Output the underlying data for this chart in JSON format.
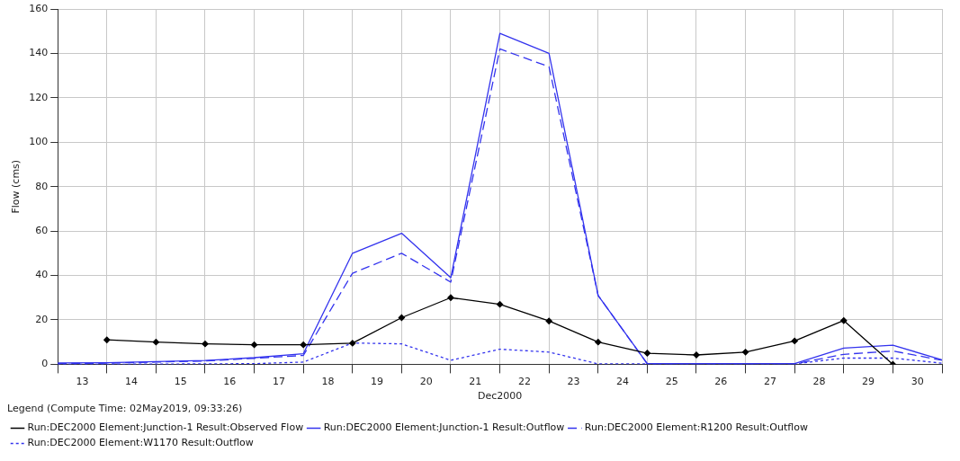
{
  "chart_data": {
    "type": "line",
    "xlabel": "Dec2000",
    "ylabel": "Flow (cms)",
    "legend_title": "Legend (Compute Time: 02May2019, 09:33:26)",
    "xlim": [
      13,
      31
    ],
    "xticks": [
      {
        "value": 13,
        "label": null
      },
      {
        "value": 13.5,
        "label": "13"
      },
      {
        "value": 14,
        "label": null
      },
      {
        "value": 14.5,
        "label": "14"
      },
      {
        "value": 15,
        "label": null
      },
      {
        "value": 15.5,
        "label": "15"
      },
      {
        "value": 16,
        "label": null
      },
      {
        "value": 16.5,
        "label": "16"
      },
      {
        "value": 17,
        "label": null
      },
      {
        "value": 17.5,
        "label": "17"
      },
      {
        "value": 18,
        "label": null
      },
      {
        "value": 18.5,
        "label": "18"
      },
      {
        "value": 19,
        "label": null
      },
      {
        "value": 19.5,
        "label": "19"
      },
      {
        "value": 20,
        "label": null
      },
      {
        "value": 20.5,
        "label": "20"
      },
      {
        "value": 21,
        "label": null
      },
      {
        "value": 21.5,
        "label": "21"
      },
      {
        "value": 22,
        "label": null
      },
      {
        "value": 22.5,
        "label": "22"
      },
      {
        "value": 23,
        "label": null
      },
      {
        "value": 23.5,
        "label": "23"
      },
      {
        "value": 24,
        "label": null
      },
      {
        "value": 24.5,
        "label": "24"
      },
      {
        "value": 25,
        "label": null
      },
      {
        "value": 25.5,
        "label": "25"
      },
      {
        "value": 26,
        "label": null
      },
      {
        "value": 26.5,
        "label": "26"
      },
      {
        "value": 27,
        "label": null
      },
      {
        "value": 27.5,
        "label": "27"
      },
      {
        "value": 28,
        "label": null
      },
      {
        "value": 28.5,
        "label": "28"
      },
      {
        "value": 29,
        "label": null
      },
      {
        "value": 29.5,
        "label": "29"
      },
      {
        "value": 30,
        "label": null
      },
      {
        "value": 30.5,
        "label": "30"
      },
      {
        "value": 31,
        "label": null
      }
    ],
    "ylim": [
      0,
      160
    ],
    "yticks": [
      0,
      20,
      40,
      60,
      80,
      100,
      120,
      140,
      160
    ],
    "grid": true,
    "legend": "bottom",
    "series": [
      {
        "name": "Run:DEC2000 Element:Junction-1 Result:Observed Flow",
        "color": "#000000",
        "marker": "diamond",
        "line_style": "solid",
        "x": [
          14,
          15,
          16,
          17,
          18,
          19,
          20,
          21,
          22,
          23,
          24,
          25,
          26,
          27,
          28,
          29,
          30
        ],
        "values": [
          11,
          10,
          9.2,
          8.8,
          8.8,
          9.5,
          21,
          30,
          27,
          19.5,
          10,
          5,
          4.2,
          5.5,
          10.5,
          19.7,
          0
        ]
      },
      {
        "name": "Run:DEC2000 Element:Junction-1 Result:Outflow",
        "color": "#3333ee",
        "marker": "none",
        "line_style": "solid",
        "x": [
          13,
          14,
          15,
          16,
          17,
          18,
          19,
          20,
          21,
          22,
          23,
          24,
          25,
          26,
          27,
          28,
          29,
          30,
          31
        ],
        "values": [
          0.6,
          0.7,
          1.2,
          1.7,
          3,
          4.8,
          50,
          59,
          39,
          149,
          140,
          31,
          0.3,
          0.3,
          0.3,
          0.3,
          7.3,
          8.6,
          2
        ]
      },
      {
        "name": "Run:DEC2000 Element:R1200 Result:Outflow",
        "color": "#3333ee",
        "marker": "none",
        "line_style": "dashed",
        "x": [
          13,
          14,
          15,
          16,
          17,
          18,
          19,
          20,
          21,
          22,
          23,
          24,
          25,
          26,
          27,
          28,
          29,
          30,
          31
        ],
        "values": [
          0.3,
          0.5,
          1,
          1.5,
          2.7,
          4,
          41,
          50,
          37,
          142,
          134,
          31,
          0.2,
          0.2,
          0.2,
          0.2,
          4.5,
          6,
          1.8
        ]
      },
      {
        "name": "Run:DEC2000 Element:W1170 Result:Outflow",
        "color": "#3333ee",
        "marker": "none",
        "line_style": "dotted",
        "x": [
          13,
          14,
          15,
          16,
          17,
          18,
          19,
          20,
          21,
          22,
          23,
          24,
          25,
          26,
          27,
          28,
          29,
          30,
          31
        ],
        "values": [
          0,
          0,
          0.1,
          0.2,
          0.3,
          1,
          9.6,
          9.2,
          1.8,
          6.8,
          5.5,
          0.2,
          0.2,
          0.2,
          0.2,
          0.2,
          2.8,
          2.8,
          0.5
        ]
      }
    ]
  }
}
